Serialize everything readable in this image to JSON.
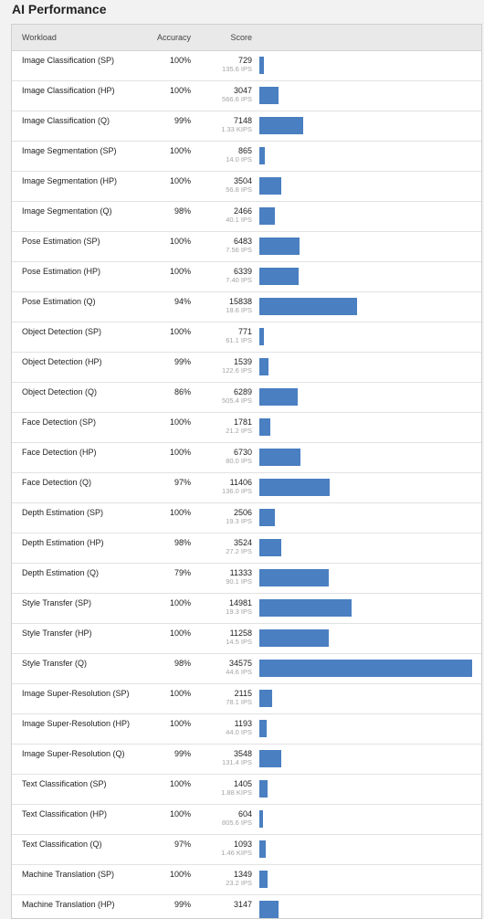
{
  "title": "AI Performance",
  "colors": {
    "bar": "#4a7fc1"
  },
  "chart_data": {
    "type": "bar",
    "max_score": 34575
  },
  "table": {
    "headers": {
      "workload": "Workload",
      "accuracy": "Accuracy",
      "score": "Score"
    },
    "rows": [
      {
        "workload": "Image Classification (SP)",
        "accuracy": "100%",
        "score": "729",
        "sub": "135.6 IPS",
        "value": 729
      },
      {
        "workload": "Image Classification (HP)",
        "accuracy": "100%",
        "score": "3047",
        "sub": "566.6 IPS",
        "value": 3047
      },
      {
        "workload": "Image Classification (Q)",
        "accuracy": "99%",
        "score": "7148",
        "sub": "1.33 KIPS",
        "value": 7148
      },
      {
        "workload": "Image Segmentation (SP)",
        "accuracy": "100%",
        "score": "865",
        "sub": "14.0 IPS",
        "value": 865
      },
      {
        "workload": "Image Segmentation (HP)",
        "accuracy": "100%",
        "score": "3504",
        "sub": "56.8 IPS",
        "value": 3504
      },
      {
        "workload": "Image Segmentation (Q)",
        "accuracy": "98%",
        "score": "2466",
        "sub": "40.1 IPS",
        "value": 2466
      },
      {
        "workload": "Pose Estimation (SP)",
        "accuracy": "100%",
        "score": "6483",
        "sub": "7.56 IPS",
        "value": 6483
      },
      {
        "workload": "Pose Estimation (HP)",
        "accuracy": "100%",
        "score": "6339",
        "sub": "7.40 IPS",
        "value": 6339
      },
      {
        "workload": "Pose Estimation (Q)",
        "accuracy": "94%",
        "score": "15838",
        "sub": "18.6 IPS",
        "value": 15838
      },
      {
        "workload": "Object Detection (SP)",
        "accuracy": "100%",
        "score": "771",
        "sub": "61.1 IPS",
        "value": 771
      },
      {
        "workload": "Object Detection (HP)",
        "accuracy": "99%",
        "score": "1539",
        "sub": "122.6 IPS",
        "value": 1539
      },
      {
        "workload": "Object Detection (Q)",
        "accuracy": "86%",
        "score": "6289",
        "sub": "505.4 IPS",
        "value": 6289
      },
      {
        "workload": "Face Detection (SP)",
        "accuracy": "100%",
        "score": "1781",
        "sub": "21.2 IPS",
        "value": 1781
      },
      {
        "workload": "Face Detection (HP)",
        "accuracy": "100%",
        "score": "6730",
        "sub": "80.0 IPS",
        "value": 6730
      },
      {
        "workload": "Face Detection (Q)",
        "accuracy": "97%",
        "score": "11406",
        "sub": "136.0 IPS",
        "value": 11406
      },
      {
        "workload": "Depth Estimation (SP)",
        "accuracy": "100%",
        "score": "2506",
        "sub": "19.3 IPS",
        "value": 2506
      },
      {
        "workload": "Depth Estimation (HP)",
        "accuracy": "98%",
        "score": "3524",
        "sub": "27.2 IPS",
        "value": 3524
      },
      {
        "workload": "Depth Estimation (Q)",
        "accuracy": "79%",
        "score": "11333",
        "sub": "90.1 IPS",
        "value": 11333
      },
      {
        "workload": "Style Transfer (SP)",
        "accuracy": "100%",
        "score": "14981",
        "sub": "19.3 IPS",
        "value": 14981
      },
      {
        "workload": "Style Transfer (HP)",
        "accuracy": "100%",
        "score": "11258",
        "sub": "14.5 IPS",
        "value": 11258
      },
      {
        "workload": "Style Transfer (Q)",
        "accuracy": "98%",
        "score": "34575",
        "sub": "44.6 IPS",
        "value": 34575
      },
      {
        "workload": "Image Super-Resolution (SP)",
        "accuracy": "100%",
        "score": "2115",
        "sub": "78.1 IPS",
        "value": 2115
      },
      {
        "workload": "Image Super-Resolution (HP)",
        "accuracy": "100%",
        "score": "1193",
        "sub": "44.0 IPS",
        "value": 1193
      },
      {
        "workload": "Image Super-Resolution (Q)",
        "accuracy": "99%",
        "score": "3548",
        "sub": "131.4 IPS",
        "value": 3548
      },
      {
        "workload": "Text Classification (SP)",
        "accuracy": "100%",
        "score": "1405",
        "sub": "1.88 KIPS",
        "value": 1405
      },
      {
        "workload": "Text Classification (HP)",
        "accuracy": "100%",
        "score": "604",
        "sub": "805.6 IPS",
        "value": 604
      },
      {
        "workload": "Text Classification (Q)",
        "accuracy": "97%",
        "score": "1093",
        "sub": "1.46 KIPS",
        "value": 1093
      },
      {
        "workload": "Machine Translation (SP)",
        "accuracy": "100%",
        "score": "1349",
        "sub": "23.2 IPS",
        "value": 1349
      },
      {
        "workload": "Machine Translation (HP)",
        "accuracy": "99%",
        "score": "3147",
        "sub": "",
        "value": 3147
      }
    ]
  }
}
